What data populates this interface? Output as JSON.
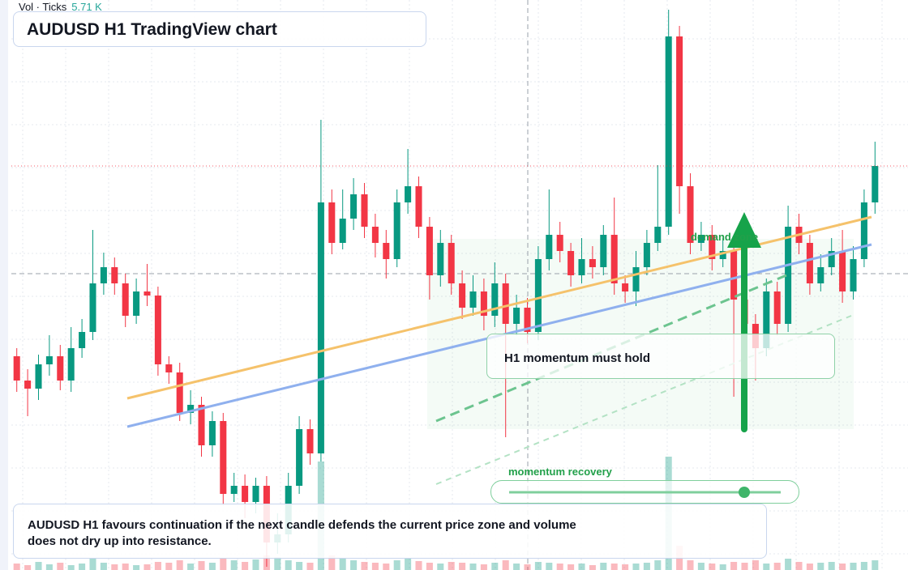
{
  "chart_data": {
    "type": "candlestick",
    "title": "AUDUSD H1 TradingView chart",
    "volume_label": "Vol · Ticks",
    "volume_value": "5.71 K",
    "zone_label": "demand zone",
    "callout": "H1 momentum must hold",
    "slider_label": "momentum recovery",
    "note": "AUDUSD H1 favours continuation if the next candle defends the current price zone and volume does not dry up into resistance.",
    "up_color": "#089981",
    "down_color": "#f23645",
    "ylim": [
      0,
      704
    ],
    "open": [
      264,
      234,
      224,
      254,
      264,
      234,
      274,
      294,
      354,
      374,
      354,
      314,
      344,
      339,
      254,
      244,
      194,
      204,
      154,
      184,
      94,
      104,
      84,
      104,
      34,
      44,
      104,
      174,
      144,
      454,
      404,
      434,
      464,
      424,
      404,
      384,
      454,
      474,
      424,
      364,
      404,
      354,
      324,
      344,
      314,
      354,
      304,
      324,
      294,
      384,
      414,
      394,
      364,
      384,
      374,
      414,
      354,
      344,
      374,
      404,
      424,
      659,
      474,
      404,
      414,
      384,
      394,
      334,
      304,
      274,
      344,
      304,
      424,
      404,
      354,
      374,
      394,
      344,
      384,
      454
    ],
    "high": [
      274,
      248,
      266,
      290,
      278,
      300,
      310,
      420,
      392,
      386,
      366,
      360,
      378,
      350,
      264,
      256,
      222,
      214,
      196,
      194,
      120,
      118,
      114,
      116,
      70,
      120,
      190,
      186,
      556,
      470,
      470,
      484,
      478,
      440,
      420,
      470,
      520,
      486,
      436,
      420,
      414,
      370,
      364,
      360,
      380,
      366,
      340,
      336,
      400,
      470,
      430,
      404,
      410,
      400,
      426,
      460,
      364,
      394,
      420,
      500,
      692,
      672,
      490,
      430,
      426,
      410,
      404,
      346,
      316,
      360,
      356,
      450,
      440,
      414,
      390,
      410,
      420,
      400,
      470,
      529
    ],
    "low": [
      220,
      190,
      210,
      240,
      222,
      220,
      262,
      284,
      340,
      340,
      300,
      304,
      326,
      240,
      230,
      184,
      180,
      140,
      140,
      80,
      84,
      64,
      70,
      4,
      20,
      34,
      94,
      130,
      134,
      390,
      396,
      420,
      410,
      386,
      360,
      374,
      440,
      410,
      334,
      350,
      340,
      310,
      314,
      296,
      300,
      164,
      290,
      280,
      284,
      370,
      380,
      350,
      354,
      360,
      364,
      340,
      330,
      326,
      364,
      394,
      414,
      440,
      390,
      394,
      370,
      374,
      214,
      264,
      234,
      264,
      290,
      294,
      390,
      340,
      344,
      364,
      330,
      334,
      374,
      440
    ],
    "close": [
      234,
      224,
      254,
      264,
      234,
      274,
      294,
      354,
      374,
      354,
      314,
      344,
      339,
      254,
      244,
      194,
      204,
      154,
      184,
      94,
      104,
      84,
      104,
      34,
      44,
      104,
      174,
      144,
      454,
      404,
      434,
      464,
      424,
      404,
      384,
      454,
      474,
      424,
      364,
      404,
      354,
      324,
      344,
      314,
      354,
      304,
      324,
      294,
      384,
      414,
      394,
      364,
      384,
      374,
      414,
      354,
      344,
      374,
      404,
      424,
      659,
      474,
      404,
      414,
      384,
      394,
      334,
      304,
      274,
      344,
      304,
      424,
      404,
      354,
      374,
      394,
      344,
      384,
      454,
      499
    ],
    "volume": [
      8,
      6,
      10,
      7,
      9,
      6,
      8,
      14,
      9,
      7,
      8,
      6,
      7,
      10,
      9,
      12,
      8,
      11,
      9,
      14,
      12,
      10,
      13,
      18,
      16,
      12,
      10,
      9,
      134,
      18,
      14,
      12,
      10,
      9,
      8,
      12,
      14,
      11,
      9,
      8,
      10,
      9,
      8,
      7,
      9,
      12,
      8,
      7,
      10,
      9,
      8,
      7,
      8,
      6,
      9,
      8,
      7,
      8,
      9,
      12,
      140,
      30,
      12,
      9,
      8,
      7,
      10,
      9,
      12,
      8,
      9,
      14,
      10,
      8,
      9,
      10,
      8,
      9,
      10,
      12
    ]
  }
}
